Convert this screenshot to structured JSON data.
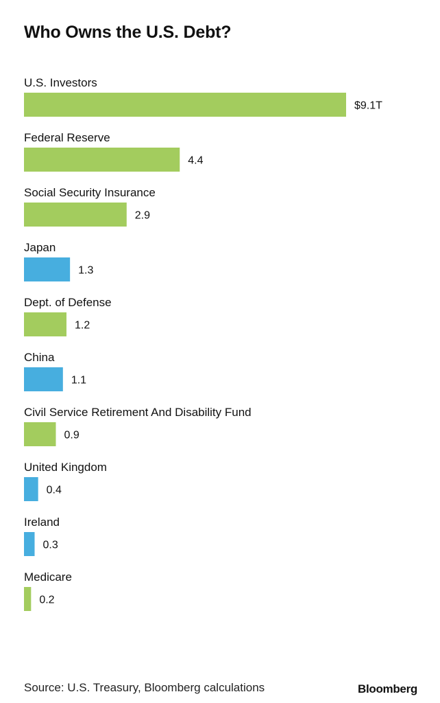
{
  "chart_data": {
    "type": "bar",
    "orientation": "horizontal",
    "title": "Who Owns the U.S. Debt?",
    "categories": [
      "U.S. Investors",
      "Federal Reserve",
      "Social Security Insurance",
      "Japan",
      "Dept. of Defense",
      "China",
      "Civil Service Retirement And Disability Fund",
      "United Kingdom",
      "Ireland",
      "Medicare"
    ],
    "values": [
      9.1,
      4.4,
      2.9,
      1.3,
      1.2,
      1.1,
      0.9,
      0.4,
      0.3,
      0.2
    ],
    "value_labels": [
      "$9.1T",
      "4.4",
      "2.9",
      "1.3",
      "1.2",
      "1.1",
      "0.9",
      "0.4",
      "0.3",
      "0.2"
    ],
    "groups": [
      "domestic",
      "domestic",
      "domestic",
      "foreign",
      "domestic",
      "foreign",
      "domestic",
      "foreign",
      "foreign",
      "domestic"
    ],
    "colors": {
      "domestic": "#a3cc5e",
      "foreign": "#47aedf"
    },
    "xlim": [
      0,
      9.1
    ],
    "grid": false,
    "legend": "none"
  },
  "footer": {
    "source": "Source: U.S. Treasury, Bloomberg calculations",
    "brand": "Bloomberg"
  }
}
